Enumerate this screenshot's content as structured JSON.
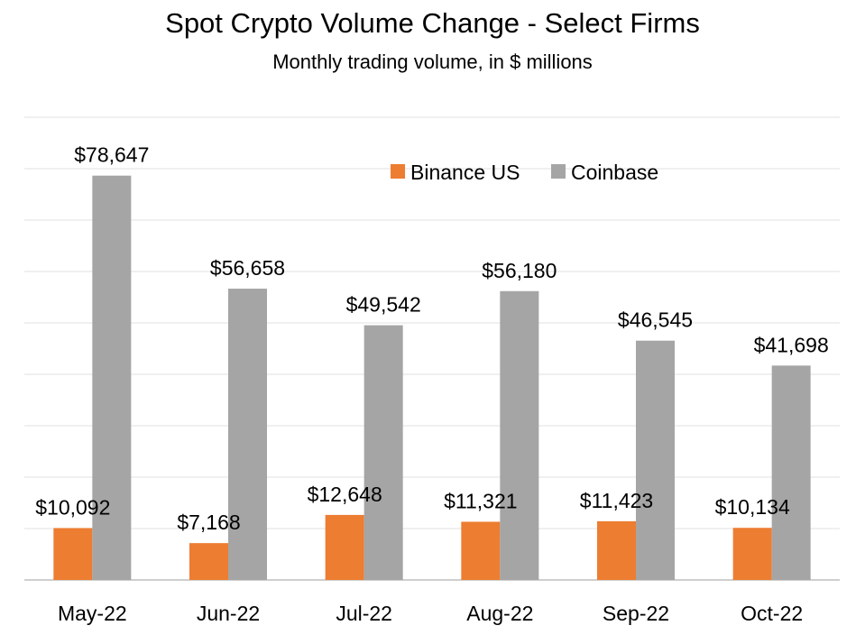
{
  "chart_data": {
    "type": "bar",
    "title": "Spot Crypto Volume Change - Select Firms",
    "subtitle": "Monthly trading volume, in $ millions",
    "xlabel": "",
    "ylabel": "",
    "categories": [
      "May-22",
      "Jun-22",
      "Jul-22",
      "Aug-22",
      "Sep-22",
      "Oct-22"
    ],
    "ylim": [
      0,
      90000
    ],
    "grid": true,
    "legend_position": "top-right",
    "series": [
      {
        "name": "Binance US",
        "color": "#ED7D31",
        "values": [
          10092,
          7168,
          12648,
          11321,
          11423,
          10134
        ],
        "labels": [
          "$10,092",
          "$7,168",
          "$12,648",
          "$11,321",
          "$11,423",
          "$10,134"
        ]
      },
      {
        "name": "Coinbase",
        "color": "#A5A5A5",
        "values": [
          78647,
          56658,
          49542,
          56180,
          46545,
          41698
        ],
        "labels": [
          "$78,647",
          "$56,658",
          "$49,542",
          "$56,180",
          "$46,545",
          "$41,698"
        ]
      }
    ]
  }
}
